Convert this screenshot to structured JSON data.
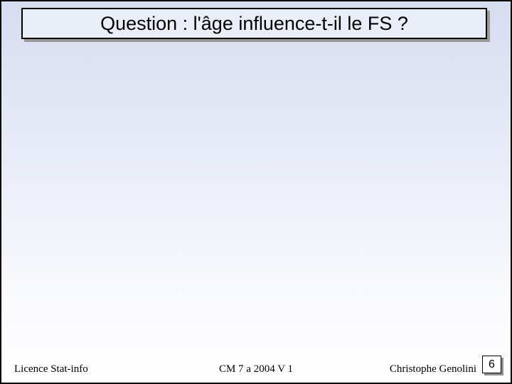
{
  "title": "Question : l'âge influence-t-il le FS ?",
  "footer": {
    "left": "Licence Stat-info",
    "center": "CM 7 a 2004 V 1",
    "right": "Christophe Genolini"
  },
  "page_number": "6",
  "colors": {
    "bg_top": "#d6ddf0",
    "bg_bottom": "#ffffff",
    "border": "#000000",
    "shadow": "#9a9a9a",
    "title_bg": "#eaeef8"
  }
}
